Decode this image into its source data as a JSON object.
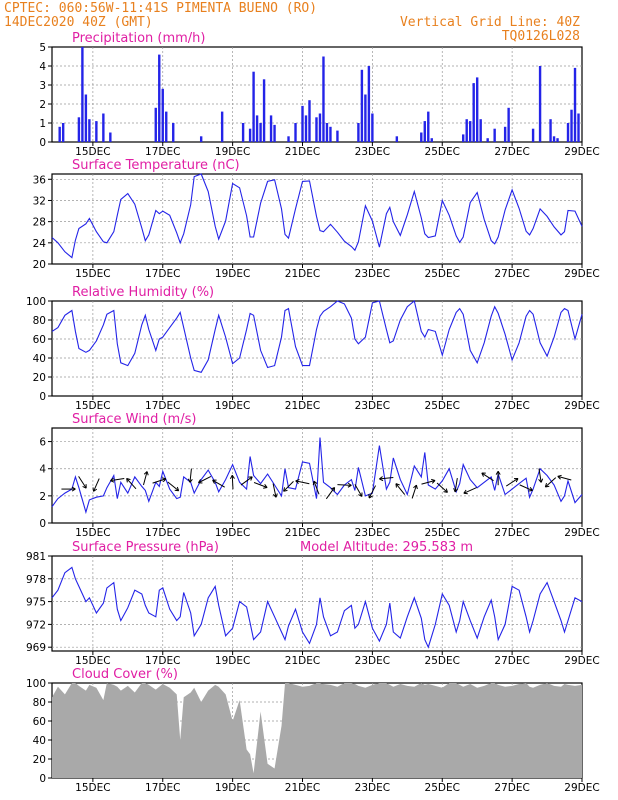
{
  "header": {
    "left_line1": "CPTEC:   060:56W-11:41S  PIMENTA BUENO (RO)",
    "left_line2": "14DEC2020 40Z (GMT)",
    "right_line2": "Vertical Grid Line: 40Z",
    "right_line3": "TQ0126L028"
  },
  "colors": {
    "header": "#e8801e",
    "title": "#e01fa4",
    "series": "#2424e8",
    "cloud": "#a9a9a9"
  },
  "x_ticks": [
    "15DEC",
    "17DEC",
    "19DEC",
    "21DEC",
    "23DEC",
    "25DEC",
    "27DEC",
    "29DEC"
  ],
  "panels": {
    "precip": {
      "title": "Precipitation (mm/h)",
      "yticks": [
        "0",
        "1",
        "2",
        "3",
        "4",
        "5"
      ]
    },
    "temp": {
      "title": "Surface Temperature (nC)",
      "yticks": [
        "20",
        "24",
        "28",
        "32",
        "36"
      ]
    },
    "rh": {
      "title": "Relative Humidity (%)",
      "yticks": [
        "0",
        "20",
        "40",
        "60",
        "80",
        "100"
      ]
    },
    "wind": {
      "title": "Surface Wind (m/s)",
      "yticks": [
        "0",
        "2",
        "4",
        "6"
      ]
    },
    "pres": {
      "title": "Surface Pressure (hPa)",
      "subtitle": "Model Altitude: 295.583 m",
      "yticks": [
        "969",
        "972",
        "975",
        "978",
        "981"
      ]
    },
    "cloud": {
      "title": "Cloud Cover (%)",
      "yticks": [
        "0",
        "20",
        "40",
        "60",
        "80",
        "100"
      ]
    }
  },
  "chart_data": [
    {
      "type": "bar",
      "name": "precipitation",
      "title": "Precipitation (mm/h)",
      "ylim": [
        0,
        5
      ],
      "x_range_days": [
        13.83,
        29.0
      ],
      "grid": true,
      "x": [
        14.05,
        14.15,
        14.6,
        14.7,
        14.8,
        14.9,
        15.1,
        15.3,
        15.5,
        16.8,
        16.9,
        17.0,
        17.1,
        17.3,
        18.1,
        18.7,
        19.3,
        19.5,
        19.6,
        19.7,
        19.8,
        19.9,
        20.1,
        20.2,
        20.6,
        20.8,
        21.0,
        21.1,
        21.2,
        21.4,
        21.5,
        21.6,
        21.7,
        21.8,
        22.0,
        22.6,
        22.7,
        22.8,
        22.9,
        23.0,
        23.7,
        24.4,
        24.5,
        24.6,
        24.7,
        25.6,
        25.7,
        25.8,
        25.9,
        26.0,
        26.1,
        26.3,
        26.5,
        26.8,
        26.9,
        27.6,
        27.8,
        28.1,
        28.2,
        28.3,
        28.6,
        28.7,
        28.8,
        28.9
      ],
      "values": [
        0.8,
        1.0,
        1.3,
        5.0,
        2.5,
        1.2,
        1.1,
        1.5,
        0.5,
        1.8,
        4.6,
        2.8,
        1.6,
        1.0,
        0.3,
        1.6,
        1.0,
        0.7,
        3.7,
        1.4,
        1.0,
        3.3,
        1.4,
        0.9,
        0.3,
        1.0,
        1.9,
        1.4,
        2.2,
        1.3,
        1.5,
        4.5,
        1.0,
        0.8,
        0.6,
        1.0,
        3.8,
        2.5,
        4.0,
        1.5,
        0.3,
        0.5,
        1.1,
        1.6,
        0.2,
        0.4,
        1.2,
        1.1,
        3.1,
        3.4,
        1.2,
        0.2,
        0.7,
        0.8,
        1.8,
        0.7,
        4.0,
        1.2,
        0.3,
        0.2,
        1.0,
        1.7,
        3.9,
        1.5
      ]
    },
    {
      "type": "line",
      "name": "surface_temperature",
      "title": "Surface Temperature (nC)",
      "ylim": [
        20,
        37
      ],
      "x": [
        13.83,
        14.0,
        14.2,
        14.4,
        14.5,
        14.6,
        14.8,
        14.9,
        15.1,
        15.3,
        15.4,
        15.6,
        15.7,
        15.8,
        16.0,
        16.2,
        16.4,
        16.5,
        16.6,
        16.8,
        16.9,
        17.0,
        17.2,
        17.4,
        17.5,
        17.6,
        17.8,
        17.9,
        18.1,
        18.3,
        18.5,
        18.6,
        18.8,
        19.0,
        19.2,
        19.4,
        19.5,
        19.6,
        19.8,
        20.0,
        20.2,
        20.4,
        20.5,
        20.6,
        20.8,
        21.0,
        21.2,
        21.4,
        21.5,
        21.6,
        21.8,
        22.0,
        22.2,
        22.4,
        22.5,
        22.6,
        22.8,
        23.0,
        23.2,
        23.4,
        23.5,
        23.6,
        23.8,
        24.0,
        24.2,
        24.4,
        24.5,
        24.6,
        24.8,
        25.0,
        25.2,
        25.4,
        25.5,
        25.6,
        25.8,
        26.0,
        26.2,
        26.4,
        26.5,
        26.6,
        26.8,
        27.0,
        27.2,
        27.4,
        27.5,
        27.6,
        27.8,
        28.0,
        28.2,
        28.4,
        28.5,
        28.6,
        28.8,
        29.0
      ],
      "values": [
        25.0,
        24.0,
        22.3,
        21.2,
        24.5,
        26.7,
        27.6,
        28.6,
        26.1,
        24.2,
        24.0,
        26.1,
        29.2,
        32.2,
        33.3,
        31.3,
        26.8,
        24.4,
        25.5,
        30.1,
        29.5,
        30.0,
        29.2,
        25.9,
        24.0,
        25.7,
        31.2,
        36.5,
        37.0,
        33.7,
        27.1,
        24.7,
        28.1,
        35.2,
        34.4,
        29.1,
        25.1,
        25.1,
        31.5,
        35.6,
        35.9,
        30.4,
        25.6,
        24.9,
        30.4,
        35.6,
        35.7,
        29.0,
        26.3,
        26.1,
        27.5,
        26.0,
        24.3,
        23.3,
        22.6,
        24.2,
        31.0,
        28.1,
        23.2,
        29.5,
        30.7,
        28.0,
        25.4,
        29.3,
        33.7,
        28.7,
        25.7,
        25.0,
        25.3,
        32.0,
        29.2,
        25.3,
        24.1,
        25.1,
        31.6,
        33.5,
        28.4,
        24.4,
        23.8,
        25.1,
        30.2,
        34.0,
        30.5,
        26.2,
        25.5,
        26.7,
        30.4,
        29.0,
        27.0,
        25.5,
        26.1,
        30.1,
        30.0,
        27.1
      ]
    },
    {
      "type": "line",
      "name": "relative_humidity",
      "title": "Relative Humidity (%)",
      "ylim": [
        0,
        100
      ],
      "x": [
        13.83,
        14.0,
        14.2,
        14.4,
        14.5,
        14.6,
        14.8,
        14.9,
        15.1,
        15.3,
        15.4,
        15.6,
        15.7,
        15.8,
        16.0,
        16.2,
        16.4,
        16.5,
        16.6,
        16.8,
        16.9,
        17.0,
        17.2,
        17.4,
        17.5,
        17.6,
        17.8,
        17.9,
        18.1,
        18.3,
        18.5,
        18.6,
        18.8,
        19.0,
        19.2,
        19.4,
        19.5,
        19.6,
        19.8,
        20.0,
        20.2,
        20.4,
        20.5,
        20.6,
        20.8,
        21.0,
        21.2,
        21.4,
        21.5,
        21.6,
        21.8,
        22.0,
        22.2,
        22.4,
        22.5,
        22.6,
        22.8,
        23.0,
        23.2,
        23.4,
        23.5,
        23.6,
        23.8,
        24.0,
        24.2,
        24.4,
        24.5,
        24.6,
        24.8,
        25.0,
        25.2,
        25.4,
        25.5,
        25.6,
        25.8,
        26.0,
        26.2,
        26.4,
        26.5,
        26.6,
        26.8,
        27.0,
        27.2,
        27.4,
        27.5,
        27.6,
        27.8,
        28.0,
        28.2,
        28.4,
        28.5,
        28.6,
        28.8,
        29.0
      ],
      "values": [
        68,
        72,
        85,
        90,
        68,
        50,
        46,
        48,
        58,
        75,
        86,
        90,
        55,
        35,
        32,
        45,
        75,
        85,
        70,
        48,
        60,
        62,
        72,
        82,
        88,
        72,
        40,
        27,
        25,
        38,
        70,
        85,
        62,
        34,
        40,
        70,
        87,
        85,
        48,
        30,
        32,
        62,
        90,
        92,
        52,
        32,
        32,
        70,
        84,
        89,
        94,
        100,
        97,
        82,
        60,
        55,
        62,
        98,
        100,
        70,
        56,
        58,
        80,
        94,
        100,
        68,
        62,
        70,
        68,
        43,
        70,
        88,
        92,
        86,
        48,
        35,
        56,
        84,
        94,
        87,
        65,
        38,
        56,
        84,
        90,
        86,
        56,
        42,
        62,
        88,
        92,
        90,
        60,
        86
      ]
    },
    {
      "type": "line",
      "name": "surface_wind_speed",
      "title": "Surface Wind (m/s)",
      "ylim": [
        0,
        7
      ],
      "x": [
        13.83,
        14.0,
        14.2,
        14.4,
        14.5,
        14.6,
        14.8,
        14.9,
        15.1,
        15.3,
        15.4,
        15.6,
        15.7,
        15.8,
        16.0,
        16.2,
        16.4,
        16.5,
        16.6,
        16.8,
        16.9,
        17.0,
        17.2,
        17.4,
        17.5,
        17.6,
        17.8,
        17.9,
        18.1,
        18.3,
        18.5,
        18.6,
        18.8,
        19.0,
        19.2,
        19.4,
        19.5,
        19.6,
        19.8,
        20.0,
        20.2,
        20.4,
        20.5,
        20.6,
        20.8,
        21.0,
        21.2,
        21.4,
        21.5,
        21.6,
        21.8,
        22.0,
        22.2,
        22.4,
        22.5,
        22.6,
        22.8,
        23.0,
        23.2,
        23.4,
        23.5,
        23.6,
        23.8,
        24.0,
        24.2,
        24.4,
        24.5,
        24.6,
        24.8,
        25.0,
        25.2,
        25.4,
        25.5,
        25.6,
        25.8,
        26.0,
        26.2,
        26.4,
        26.5,
        26.6,
        26.8,
        27.0,
        27.2,
        27.4,
        27.5,
        27.6,
        27.8,
        28.0,
        28.2,
        28.4,
        28.5,
        28.6,
        28.8,
        29.0
      ],
      "values": [
        1.2,
        1.8,
        2.2,
        2.5,
        3.4,
        2.6,
        0.8,
        1.7,
        1.9,
        2.0,
        2.6,
        3.5,
        1.8,
        3.0,
        2.2,
        3.4,
        2.7,
        2.4,
        1.6,
        3.0,
        2.7,
        3.8,
        2.5,
        1.8,
        1.9,
        3.4,
        3.0,
        2.2,
        3.2,
        3.9,
        3.0,
        2.3,
        3.2,
        4.3,
        3.0,
        2.5,
        4.9,
        3.5,
        2.9,
        3.6,
        2.8,
        2.0,
        4.0,
        2.6,
        2.5,
        4.5,
        4.4,
        1.8,
        6.3,
        3.0,
        2.6,
        2.1,
        2.8,
        3.2,
        2.4,
        4.1,
        2.0,
        2.2,
        5.7,
        2.5,
        3.0,
        4.8,
        3.2,
        2.1,
        4.2,
        3.4,
        5.2,
        2.8,
        2.5,
        3.1,
        4.0,
        2.3,
        2.9,
        4.3,
        3.2,
        2.6,
        3.0,
        3.4,
        2.4,
        3.6,
        2.1,
        2.5,
        2.9,
        3.3,
        1.9,
        2.5,
        4.0,
        3.5,
        2.8,
        1.6,
        2.0,
        3.1,
        1.5,
        2.1
      ]
    },
    {
      "type": "line",
      "name": "surface_pressure",
      "title": "Surface Pressure (hPa)",
      "ylim": [
        968.5,
        981
      ],
      "x": [
        13.83,
        14.0,
        14.2,
        14.4,
        14.5,
        14.6,
        14.8,
        14.9,
        15.1,
        15.3,
        15.4,
        15.6,
        15.7,
        15.8,
        16.0,
        16.2,
        16.4,
        16.5,
        16.6,
        16.8,
        16.9,
        17.0,
        17.2,
        17.4,
        17.5,
        17.6,
        17.8,
        17.9,
        18.1,
        18.3,
        18.5,
        18.6,
        18.8,
        19.0,
        19.2,
        19.4,
        19.5,
        19.6,
        19.8,
        20.0,
        20.2,
        20.4,
        20.5,
        20.6,
        20.8,
        21.0,
        21.2,
        21.4,
        21.5,
        21.6,
        21.8,
        22.0,
        22.2,
        22.4,
        22.5,
        22.6,
        22.8,
        23.0,
        23.2,
        23.4,
        23.5,
        23.6,
        23.8,
        24.0,
        24.2,
        24.4,
        24.5,
        24.6,
        24.8,
        25.0,
        25.2,
        25.4,
        25.5,
        25.6,
        25.8,
        26.0,
        26.2,
        26.4,
        26.5,
        26.6,
        26.8,
        27.0,
        27.2,
        27.4,
        27.5,
        27.6,
        27.8,
        28.0,
        28.2,
        28.4,
        28.5,
        28.6,
        28.8,
        29.0
      ],
      "values": [
        975.5,
        976.5,
        978.8,
        979.5,
        978.0,
        977.0,
        975.0,
        975.5,
        973.5,
        974.8,
        976.8,
        977.5,
        974.0,
        972.5,
        974.2,
        976.5,
        976.0,
        974.5,
        973.5,
        973.0,
        976.5,
        976.8,
        974.0,
        972.5,
        973.0,
        976.2,
        973.5,
        970.5,
        972.0,
        975.5,
        977.0,
        974.5,
        970.5,
        971.5,
        975.0,
        974.3,
        972.2,
        970.0,
        971.0,
        975.0,
        973.0,
        971.0,
        970.0,
        971.8,
        974.0,
        971.0,
        969.5,
        972.0,
        975.5,
        973.0,
        970.5,
        971.0,
        973.8,
        974.5,
        971.5,
        972.0,
        975.0,
        971.5,
        969.8,
        972.0,
        974.8,
        971.0,
        970.2,
        973.0,
        975.5,
        972.8,
        970.0,
        969.0,
        972.0,
        976.0,
        974.5,
        971.0,
        972.5,
        975.0,
        972.5,
        970.2,
        973.0,
        975.2,
        973.0,
        970.0,
        972.0,
        977.0,
        976.5,
        973.0,
        971.0,
        972.5,
        976.0,
        977.5,
        975.0,
        972.5,
        971.0,
        972.5,
        975.5,
        975.0
      ]
    },
    {
      "type": "area",
      "name": "cloud_cover",
      "title": "Cloud Cover (%)",
      "ylim": [
        0,
        100
      ],
      "x": [
        13.83,
        14.0,
        14.2,
        14.4,
        14.5,
        14.6,
        14.8,
        14.9,
        15.1,
        15.3,
        15.4,
        15.6,
        15.7,
        15.8,
        16.0,
        16.2,
        16.4,
        16.5,
        16.6,
        16.8,
        16.9,
        17.0,
        17.2,
        17.4,
        17.5,
        17.6,
        17.8,
        17.9,
        18.1,
        18.3,
        18.5,
        18.6,
        18.8,
        19.0,
        19.2,
        19.4,
        19.5,
        19.6,
        19.8,
        20.0,
        20.2,
        20.4,
        20.5,
        20.6,
        20.8,
        21.0,
        21.2,
        21.4,
        21.5,
        21.6,
        21.8,
        22.0,
        22.2,
        22.4,
        22.5,
        22.6,
        22.8,
        23.0,
        23.2,
        23.4,
        23.5,
        23.6,
        23.8,
        24.0,
        24.2,
        24.4,
        24.5,
        24.6,
        24.8,
        25.0,
        25.2,
        25.4,
        25.5,
        25.6,
        25.8,
        26.0,
        26.2,
        26.4,
        26.5,
        26.6,
        26.8,
        27.0,
        27.2,
        27.4,
        27.5,
        27.6,
        27.8,
        28.0,
        28.2,
        28.4,
        28.5,
        28.6,
        28.8,
        29.0
      ],
      "values": [
        85,
        96,
        88,
        100,
        100,
        97,
        92,
        98,
        95,
        82,
        100,
        98,
        96,
        92,
        97,
        90,
        100,
        100,
        98,
        93,
        96,
        99,
        95,
        88,
        40,
        85,
        90,
        95,
        80,
        92,
        98,
        96,
        88,
        60,
        82,
        30,
        25,
        5,
        70,
        15,
        10,
        55,
        100,
        100,
        98,
        96,
        97,
        100,
        100,
        99,
        98,
        96,
        100,
        100,
        99,
        97,
        95,
        98,
        100,
        100,
        98,
        96,
        99,
        97,
        96,
        100,
        98,
        99,
        97,
        95,
        100,
        100,
        98,
        96,
        99,
        95,
        97,
        100,
        100,
        98,
        96,
        97,
        99,
        100,
        96,
        95,
        98,
        100,
        97,
        96,
        99,
        98,
        97,
        98
      ]
    },
    {
      "type": "scatter",
      "name": "wind_vectors_sampled",
      "x": [
        14.3,
        14.7,
        15.1,
        15.7,
        16.1,
        16.5,
        16.9,
        17.3,
        17.8,
        18.2,
        18.6,
        19.0,
        19.4,
        19.8,
        20.2,
        20.6,
        21.0,
        21.4,
        21.8,
        22.2,
        22.6,
        23.0,
        23.4,
        23.8,
        24.2,
        24.6,
        25.0,
        25.4,
        25.8,
        26.3,
        26.6,
        27.0,
        27.4,
        27.8,
        28.1,
        28.5
      ],
      "values": [
        2.5,
        3.0,
        2.8,
        3.2,
        2.9,
        3.3,
        3.1,
        2.7,
        3.5,
        3.2,
        2.9,
        3.0,
        3.1,
        2.8,
        2.4,
        2.7,
        3.0,
        2.6,
        2.2,
        2.8,
        2.4,
        2.3,
        3.3,
        2.5,
        2.3,
        3.0,
        2.6,
        2.8,
        2.4,
        3.4,
        3.3,
        3.0,
        2.6,
        3.5,
        3.0,
        3.3
      ]
    }
  ]
}
